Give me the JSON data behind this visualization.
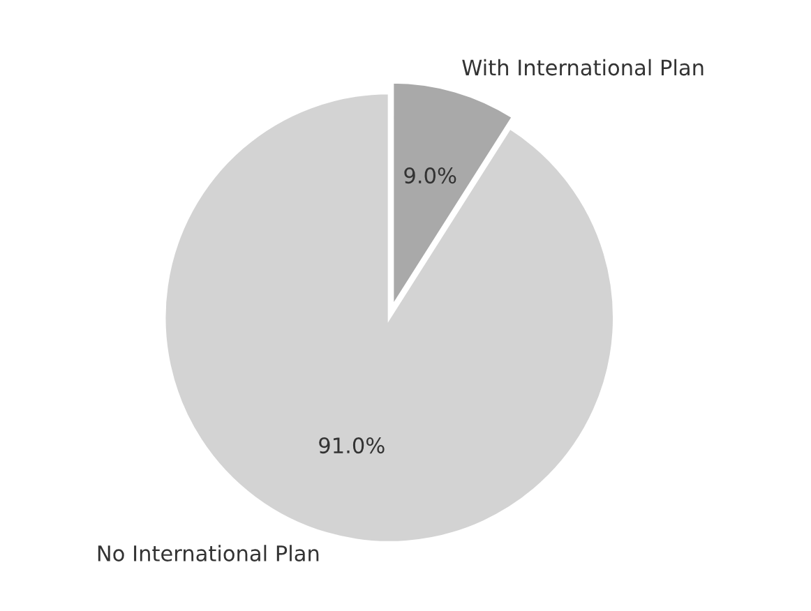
{
  "chart_data": {
    "type": "pie",
    "categories": [
      "No International Plan",
      "With International Plan"
    ],
    "values": [
      91.0,
      9.0
    ],
    "value_labels": [
      "91.0%",
      "9.0%"
    ],
    "colors": [
      "#d3d3d3",
      "#a9a9a9"
    ],
    "legend": false
  }
}
